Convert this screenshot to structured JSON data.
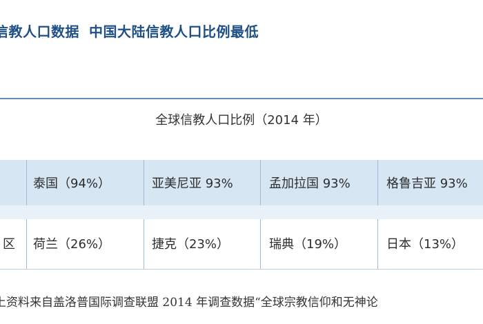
{
  "header": {
    "title_part1": "信教人口数据",
    "title_part2": "中国大陆信教人口比例最低"
  },
  "table": {
    "title": "全球信教人口比例（2014 年）",
    "rows": [
      {
        "label": "",
        "cells": [
          "泰国（94%）",
          "亚美尼亚 93%",
          "孟加拉国 93%",
          "格鲁吉亚 93%"
        ]
      },
      {
        "label": "区",
        "cells": [
          "荷兰（26%）",
          "捷克（23%）",
          "瑞典（19%）",
          "日本（13%）"
        ]
      }
    ]
  },
  "footnote": "上资料来自盖洛普国际调查联盟 2014 年调查数据“全球宗教信仰和无神论"
}
